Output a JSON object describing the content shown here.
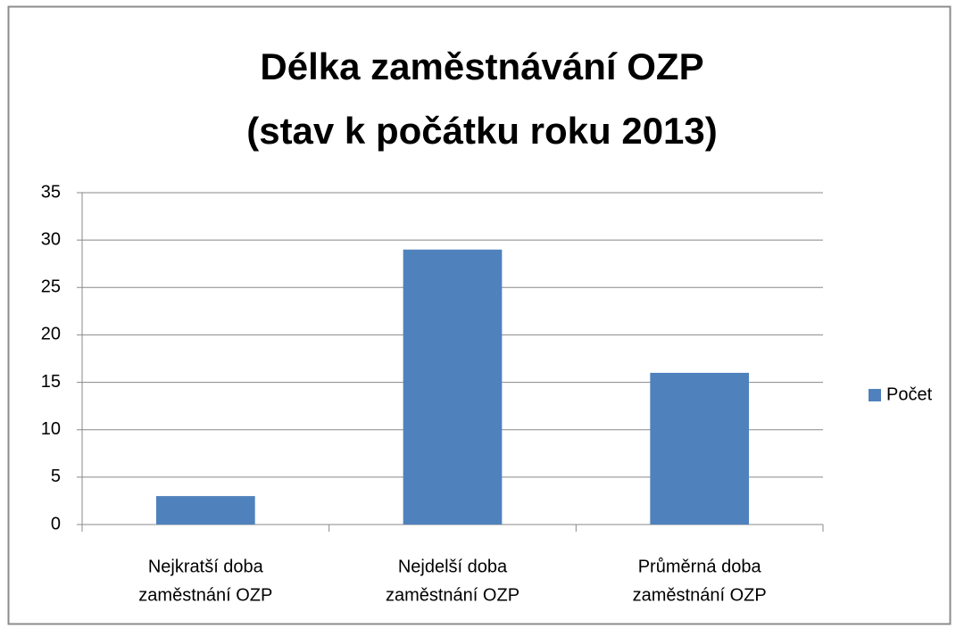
{
  "chart_data": {
    "type": "bar",
    "title": [
      "Délka zaměstnávání OZP",
      "(stav  k počátku roku 2013)"
    ],
    "categories": [
      [
        "Nejkratší doba",
        "zaměstnání OZP"
      ],
      [
        "Nejdelší doba",
        "zaměstnání OZP"
      ],
      [
        "Průměrná doba",
        "zaměstnání OZP"
      ]
    ],
    "series": [
      {
        "name": "Počet",
        "color": "#4f81bd",
        "values": [
          3,
          29,
          16
        ]
      }
    ],
    "ylim": [
      0,
      35
    ],
    "yticks": [
      0,
      5,
      10,
      15,
      20,
      25,
      30,
      35
    ],
    "grid": true,
    "legend": "right"
  }
}
